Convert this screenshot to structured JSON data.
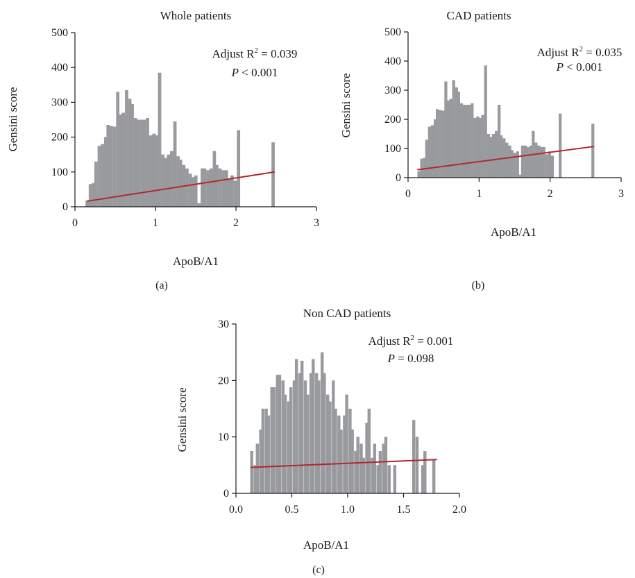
{
  "chart_data": [
    {
      "type": "bar",
      "panel_label": "(a)",
      "title": "Whole patients",
      "xlabel": "ApoB/A1",
      "ylabel": "Gensini score",
      "xlim": [
        0,
        3
      ],
      "ylim": [
        0,
        500
      ],
      "xticks": [
        "0",
        "1",
        "2",
        "3"
      ],
      "yticks": [
        "0",
        "100",
        "200",
        "300",
        "400",
        "500"
      ],
      "annotation": {
        "r2": "Adjust R² = 0.039",
        "p": "P < 0.001"
      },
      "bin_width": 0.0375,
      "bars": [
        [
          0.15,
          18
        ],
        [
          0.19,
          65
        ],
        [
          0.23,
          68
        ],
        [
          0.26,
          130
        ],
        [
          0.3,
          175
        ],
        [
          0.34,
          180
        ],
        [
          0.38,
          200
        ],
        [
          0.41,
          235
        ],
        [
          0.45,
          232
        ],
        [
          0.49,
          230
        ],
        [
          0.53,
          330
        ],
        [
          0.56,
          265
        ],
        [
          0.6,
          270
        ],
        [
          0.64,
          335
        ],
        [
          0.68,
          310
        ],
        [
          0.71,
          295
        ],
        [
          0.75,
          255
        ],
        [
          0.79,
          250
        ],
        [
          0.83,
          250
        ],
        [
          0.86,
          250
        ],
        [
          0.9,
          255
        ],
        [
          0.94,
          205
        ],
        [
          0.98,
          210
        ],
        [
          1.01,
          205
        ],
        [
          1.05,
          385
        ],
        [
          1.09,
          150
        ],
        [
          1.13,
          140
        ],
        [
          1.16,
          150
        ],
        [
          1.2,
          160
        ],
        [
          1.24,
          245
        ],
        [
          1.28,
          145
        ],
        [
          1.31,
          135
        ],
        [
          1.35,
          120
        ],
        [
          1.39,
          110
        ],
        [
          1.43,
          95
        ],
        [
          1.46,
          85
        ],
        [
          1.5,
          90
        ],
        [
          1.54,
          10
        ],
        [
          1.58,
          110
        ],
        [
          1.61,
          110
        ],
        [
          1.65,
          105
        ],
        [
          1.69,
          110
        ],
        [
          1.73,
          160
        ],
        [
          1.76,
          120
        ],
        [
          1.8,
          110
        ],
        [
          1.84,
          105
        ],
        [
          1.88,
          105
        ],
        [
          1.91,
          80
        ],
        [
          1.95,
          90
        ],
        [
          1.99,
          75
        ],
        [
          2.03,
          220
        ],
        [
          2.46,
          185
        ]
      ],
      "fit_line": {
        "x": [
          0.15,
          2.48
        ],
        "y": [
          16,
          100
        ]
      }
    },
    {
      "type": "bar",
      "panel_label": "(b)",
      "title": "CAD patients",
      "xlabel": "ApoB/A1",
      "ylabel": "Gensini score",
      "xlim": [
        0,
        3
      ],
      "ylim": [
        0,
        500
      ],
      "xticks": [
        "0",
        "1",
        "2",
        "3"
      ],
      "yticks": [
        "0",
        "100",
        "200",
        "300",
        "400",
        "500"
      ],
      "annotation": {
        "r2": "Adjust R² = 0.035",
        "p": "P < 0.001"
      },
      "bin_width": 0.0375,
      "bars": [
        [
          0.15,
          22
        ],
        [
          0.19,
          65
        ],
        [
          0.23,
          68
        ],
        [
          0.26,
          130
        ],
        [
          0.3,
          175
        ],
        [
          0.34,
          180
        ],
        [
          0.38,
          200
        ],
        [
          0.41,
          235
        ],
        [
          0.45,
          232
        ],
        [
          0.49,
          230
        ],
        [
          0.53,
          330
        ],
        [
          0.56,
          265
        ],
        [
          0.6,
          270
        ],
        [
          0.64,
          335
        ],
        [
          0.68,
          310
        ],
        [
          0.71,
          295
        ],
        [
          0.75,
          255
        ],
        [
          0.79,
          250
        ],
        [
          0.83,
          250
        ],
        [
          0.86,
          250
        ],
        [
          0.9,
          255
        ],
        [
          0.94,
          205
        ],
        [
          0.98,
          210
        ],
        [
          1.01,
          205
        ],
        [
          1.05,
          215
        ],
        [
          1.09,
          385
        ],
        [
          1.13,
          150
        ],
        [
          1.16,
          140
        ],
        [
          1.2,
          150
        ],
        [
          1.24,
          160
        ],
        [
          1.28,
          250
        ],
        [
          1.31,
          145
        ],
        [
          1.35,
          135
        ],
        [
          1.39,
          120
        ],
        [
          1.43,
          110
        ],
        [
          1.46,
          95
        ],
        [
          1.5,
          85
        ],
        [
          1.54,
          90
        ],
        [
          1.58,
          10
        ],
        [
          1.61,
          110
        ],
        [
          1.65,
          110
        ],
        [
          1.69,
          105
        ],
        [
          1.73,
          110
        ],
        [
          1.76,
          160
        ],
        [
          1.8,
          120
        ],
        [
          1.84,
          110
        ],
        [
          1.88,
          105
        ],
        [
          1.91,
          105
        ],
        [
          1.95,
          80
        ],
        [
          1.99,
          90
        ],
        [
          2.03,
          75
        ],
        [
          2.14,
          220
        ],
        [
          2.6,
          185
        ]
      ],
      "fit_line": {
        "x": [
          0.13,
          2.62
        ],
        "y": [
          27,
          107
        ]
      }
    },
    {
      "type": "bar",
      "panel_label": "(c)",
      "title": "Non CAD patients",
      "xlabel": "ApoB/A1",
      "ylabel": "Gensini score",
      "xlim": [
        0,
        2
      ],
      "ylim": [
        0,
        30
      ],
      "xticks": [
        "0.0",
        "0.5",
        "1.0",
        "1.5",
        "2.0"
      ],
      "yticks": [
        "0",
        "10",
        "20",
        "30"
      ],
      "annotation": {
        "r2": "Adjust R² = 0.001",
        "p": "P = 0.098"
      },
      "bin_width": 0.025,
      "bars": [
        [
          0.14,
          7.5
        ],
        [
          0.17,
          5.0
        ],
        [
          0.19,
          8.8
        ],
        [
          0.22,
          11.3
        ],
        [
          0.24,
          15.0
        ],
        [
          0.27,
          15.0
        ],
        [
          0.29,
          13.8
        ],
        [
          0.32,
          18.8
        ],
        [
          0.34,
          18.8
        ],
        [
          0.37,
          21.0
        ],
        [
          0.39,
          21.0
        ],
        [
          0.42,
          20.0
        ],
        [
          0.44,
          17.5
        ],
        [
          0.47,
          16.3
        ],
        [
          0.49,
          18.8
        ],
        [
          0.52,
          20.0
        ],
        [
          0.54,
          23.8
        ],
        [
          0.57,
          21.3
        ],
        [
          0.59,
          23.5
        ],
        [
          0.62,
          20.0
        ],
        [
          0.64,
          17.5
        ],
        [
          0.67,
          21.3
        ],
        [
          0.69,
          23.8
        ],
        [
          0.72,
          21.3
        ],
        [
          0.74,
          20.0
        ],
        [
          0.77,
          25.0
        ],
        [
          0.79,
          21.3
        ],
        [
          0.82,
          17.5
        ],
        [
          0.84,
          16.3
        ],
        [
          0.87,
          20.0
        ],
        [
          0.89,
          15.0
        ],
        [
          0.92,
          13.8
        ],
        [
          0.94,
          11.3
        ],
        [
          0.97,
          13.8
        ],
        [
          0.99,
          17.5
        ],
        [
          1.02,
          15.0
        ],
        [
          1.04,
          11.3
        ],
        [
          1.07,
          7.5
        ],
        [
          1.09,
          10.0
        ],
        [
          1.12,
          8.8
        ],
        [
          1.14,
          6.3
        ],
        [
          1.17,
          12.5
        ],
        [
          1.19,
          15.0
        ],
        [
          1.22,
          6.3
        ],
        [
          1.24,
          8.8
        ],
        [
          1.27,
          5.0
        ],
        [
          1.29,
          7.5
        ],
        [
          1.32,
          8.8
        ],
        [
          1.34,
          10.0
        ],
        [
          1.37,
          5.0
        ],
        [
          1.42,
          5.0
        ],
        [
          1.59,
          13.0
        ],
        [
          1.62,
          10.0
        ],
        [
          1.67,
          5.0
        ],
        [
          1.69,
          7.5
        ],
        [
          1.77,
          6.0
        ]
      ],
      "fit_line": {
        "x": [
          0.13,
          1.8
        ],
        "y": [
          4.6,
          6.0
        ]
      }
    }
  ]
}
